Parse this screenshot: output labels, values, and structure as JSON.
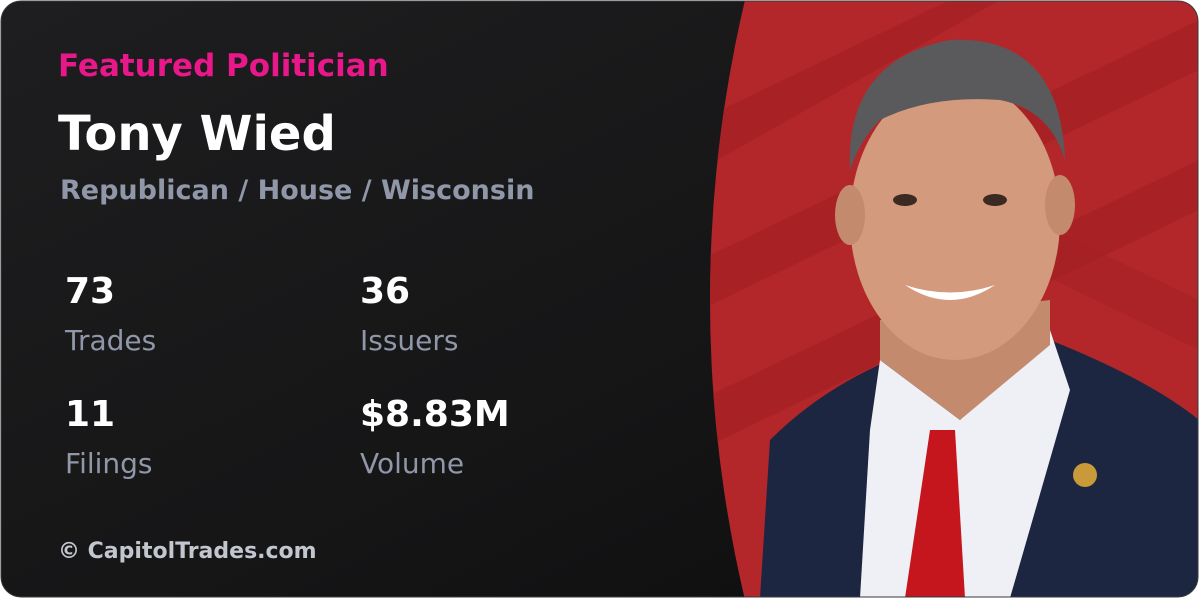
{
  "header": {
    "label": "Featured Politician",
    "name": "Tony Wied",
    "affiliation": "Republican / House / Wisconsin"
  },
  "stats": [
    {
      "value": "73",
      "label": "Trades"
    },
    {
      "value": "36",
      "label": "Issuers"
    },
    {
      "value": "11",
      "label": "Filings"
    },
    {
      "value": "$8.83M",
      "label": "Volume"
    }
  ],
  "footer": "© CapitolTrades.com"
}
